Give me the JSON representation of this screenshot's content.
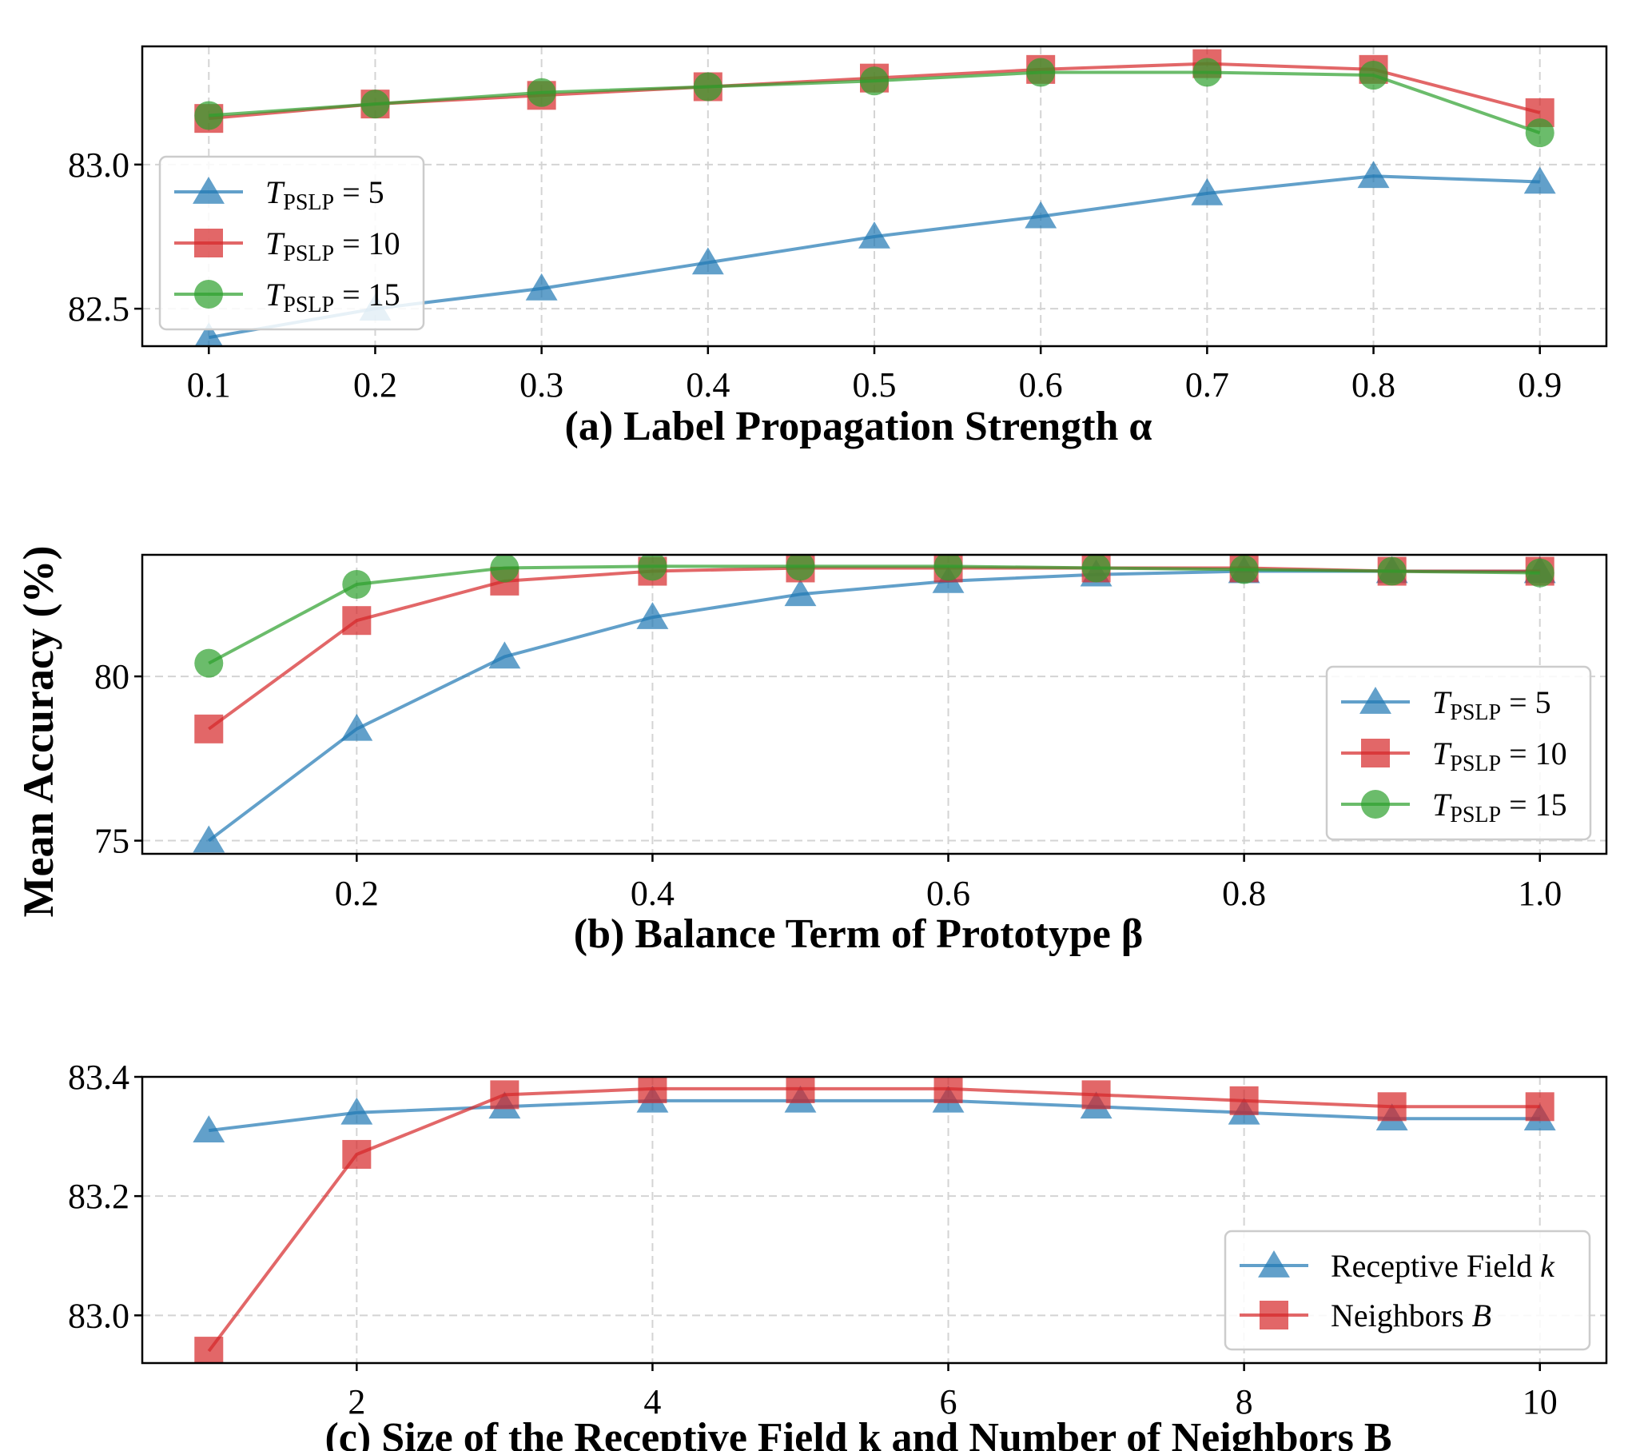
{
  "figure": {
    "ylabel": "Mean Accuracy (%)",
    "colors": {
      "blue": "#1f77b4",
      "red": "#d62728",
      "green": "#2ca02c"
    }
  },
  "chart_data": [
    {
      "id": "a",
      "type": "line",
      "title": "(a) Label Propagation Strength α",
      "xlabel": "Label Propagation Strength",
      "x": [
        0.1,
        0.2,
        0.3,
        0.4,
        0.5,
        0.6,
        0.7,
        0.8,
        0.9
      ],
      "xlim": [
        0.06,
        0.94
      ],
      "ylim": [
        82.37,
        83.41
      ],
      "xticks": [
        0.1,
        0.2,
        0.3,
        0.4,
        0.5,
        0.6,
        0.7,
        0.8,
        0.9
      ],
      "xtick_labels": [
        "0.1",
        "0.2",
        "0.3",
        "0.4",
        "0.5",
        "0.6",
        "0.7",
        "0.8",
        "0.9"
      ],
      "yticks": [
        82.5,
        83.0
      ],
      "ytick_labels": [
        "82.5",
        "83.0"
      ],
      "legend_position": "middle-left",
      "series": [
        {
          "name": "T_PSLP = 5",
          "label_main": "T",
          "label_sub": "PSLP",
          "label_rest": " = 5",
          "marker": "triangle",
          "color": "#1f77b4",
          "values": [
            82.4,
            82.5,
            82.57,
            82.66,
            82.75,
            82.82,
            82.9,
            82.96,
            82.94
          ]
        },
        {
          "name": "T_PSLP = 10",
          "label_main": "T",
          "label_sub": "PSLP",
          "label_rest": " = 10",
          "marker": "square",
          "color": "#d62728",
          "values": [
            83.16,
            83.21,
            83.24,
            83.27,
            83.3,
            83.33,
            83.35,
            83.33,
            83.18
          ]
        },
        {
          "name": "T_PSLP = 15",
          "label_main": "T",
          "label_sub": "PSLP",
          "label_rest": " = 15",
          "marker": "circle",
          "color": "#2ca02c",
          "values": [
            83.17,
            83.21,
            83.25,
            83.27,
            83.29,
            83.32,
            83.32,
            83.31,
            83.11
          ]
        }
      ]
    },
    {
      "id": "b",
      "type": "line",
      "title": "(b) Balance Term of Prototype β",
      "xlabel": "Balance Term of Prototype",
      "x": [
        0.1,
        0.2,
        0.3,
        0.4,
        0.5,
        0.6,
        0.7,
        0.8,
        0.9,
        1.0
      ],
      "xlim": [
        0.055,
        1.045
      ],
      "ylim": [
        74.6,
        83.7
      ],
      "xticks": [
        0.2,
        0.4,
        0.6,
        0.8,
        1.0
      ],
      "xtick_labels": [
        "0.2",
        "0.4",
        "0.6",
        "0.8",
        "1.0"
      ],
      "yticks": [
        75,
        80
      ],
      "ytick_labels": [
        "75",
        "80"
      ],
      "legend_position": "center-right",
      "series": [
        {
          "name": "T_PSLP = 5",
          "label_main": "T",
          "label_sub": "PSLP",
          "label_rest": " = 5",
          "marker": "triangle",
          "color": "#1f77b4",
          "values": [
            75.0,
            78.4,
            80.6,
            81.8,
            82.5,
            82.9,
            83.1,
            83.2,
            83.2,
            83.2
          ]
        },
        {
          "name": "T_PSLP = 10",
          "label_main": "T",
          "label_sub": "PSLP",
          "label_rest": " = 10",
          "marker": "square",
          "color": "#d62728",
          "values": [
            78.4,
            81.7,
            82.9,
            83.2,
            83.3,
            83.3,
            83.3,
            83.3,
            83.2,
            83.2
          ]
        },
        {
          "name": "T_PSLP = 15",
          "label_main": "T",
          "label_sub": "PSLP",
          "label_rest": " = 15",
          "marker": "circle",
          "color": "#2ca02c",
          "values": [
            80.4,
            82.8,
            83.3,
            83.35,
            83.35,
            83.35,
            83.3,
            83.25,
            83.2,
            83.15
          ]
        }
      ]
    },
    {
      "id": "c",
      "type": "line",
      "title": "(c) Size of the Receptive Field k and Number of Neighbors B",
      "xlabel": "Size of the Receptive Field k and Number of Neighbors B",
      "x": [
        1,
        2,
        3,
        4,
        5,
        6,
        7,
        8,
        9,
        10
      ],
      "xlim": [
        0.55,
        10.45
      ],
      "ylim": [
        82.92,
        83.4
      ],
      "xticks": [
        2,
        4,
        6,
        8,
        10
      ],
      "xtick_labels": [
        "2",
        "4",
        "6",
        "8",
        "10"
      ],
      "yticks": [
        83.0,
        83.2,
        83.4
      ],
      "ytick_labels": [
        "83.0",
        "83.2",
        "83.4"
      ],
      "legend_position": "lower-right",
      "series": [
        {
          "name": "Receptive Field k",
          "label_main": "Receptive Field ",
          "label_sub": "",
          "label_rest": "",
          "label_ital": "k",
          "marker": "triangle",
          "color": "#1f77b4",
          "values": [
            83.31,
            83.34,
            83.35,
            83.36,
            83.36,
            83.36,
            83.35,
            83.34,
            83.33,
            83.33
          ]
        },
        {
          "name": "Neighbors B",
          "label_main": "Neighbors ",
          "label_sub": "",
          "label_rest": "",
          "label_ital": "B",
          "marker": "square",
          "color": "#d62728",
          "values": [
            82.94,
            83.27,
            83.37,
            83.38,
            83.38,
            83.38,
            83.37,
            83.36,
            83.35,
            83.35
          ]
        }
      ]
    }
  ]
}
